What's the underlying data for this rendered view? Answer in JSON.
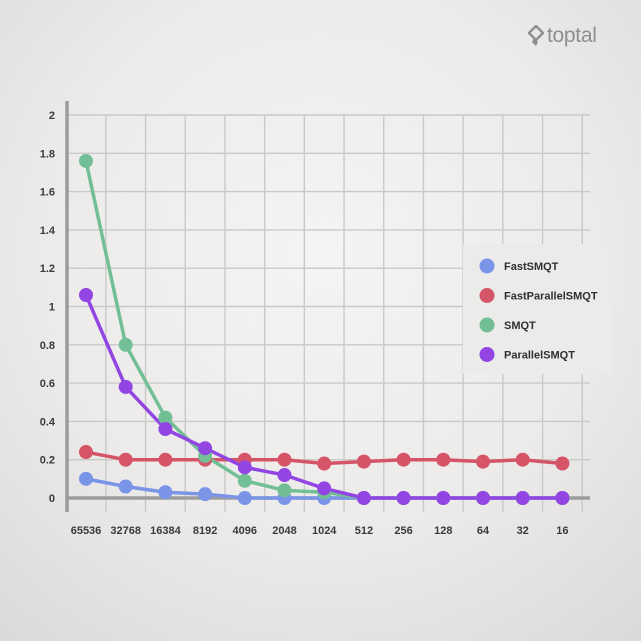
{
  "brand": {
    "logo_text": "toptal",
    "logo_icon": "toptal-diamond-icon"
  },
  "chart_data": {
    "type": "line",
    "title": "",
    "xlabel": "",
    "ylabel": "",
    "categories": [
      "65536",
      "32768",
      "16384",
      "8192",
      "4096",
      "2048",
      "1024",
      "512",
      "256",
      "128",
      "64",
      "32",
      "16"
    ],
    "ylim": [
      0,
      2
    ],
    "yticks": [
      "0",
      "0.2",
      "0.4",
      "0.6",
      "0.8",
      "1",
      "1.2",
      "1.4",
      "1.6",
      "1.8",
      "2"
    ],
    "grid": true,
    "legend_position": "right",
    "series": [
      {
        "name": "FastSMQT",
        "color": "#7a95e8",
        "values": [
          0.1,
          0.06,
          0.03,
          0.02,
          0.0,
          0.0,
          0.0,
          0.0,
          0.0,
          0.0,
          0.0,
          0.0,
          0.0
        ]
      },
      {
        "name": "FastParallelSMQT",
        "color": "#d65467",
        "values": [
          0.24,
          0.2,
          0.2,
          0.2,
          0.2,
          0.2,
          0.18,
          0.19,
          0.2,
          0.2,
          0.19,
          0.2,
          0.18
        ]
      },
      {
        "name": "SMQT",
        "color": "#72bf96",
        "values": [
          1.76,
          0.8,
          0.42,
          0.22,
          0.09,
          0.04,
          0.03,
          0.0,
          0.0,
          0.0,
          0.0,
          0.0,
          0.0
        ]
      },
      {
        "name": "ParallelSMQT",
        "color": "#9245e3",
        "values": [
          1.06,
          0.58,
          0.36,
          0.26,
          0.16,
          0.12,
          0.05,
          0.0,
          0.0,
          0.0,
          0.0,
          0.0,
          0.0
        ]
      }
    ]
  }
}
